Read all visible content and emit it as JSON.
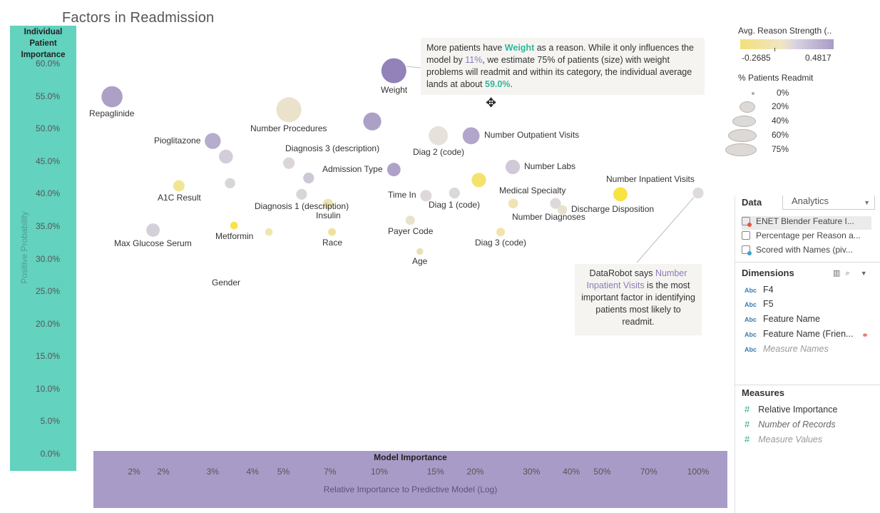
{
  "chart_data": {
    "type": "scatter",
    "title": "Factors in Readmission",
    "y_header": "Individual Patient Importance",
    "ylabel": "Positive Probability",
    "x_header": "Model Importance",
    "xlabel": "Relative Importance to Predictive Model (Log)",
    "x_scale": "log",
    "xlim": [
      0.013,
      1.2
    ],
    "ylim": [
      0,
      0.6
    ],
    "y_ticks": [
      "60.0%",
      "55.0%",
      "50.0%",
      "45.0%",
      "40.0%",
      "35.0%",
      "30.0%",
      "25.0%",
      "20.0%",
      "15.0%",
      "10.0%",
      "5.0%",
      "0.0%"
    ],
    "x_ticks": [
      {
        "v": 0.017,
        "label": "2%"
      },
      {
        "v": 0.021,
        "label": "2%"
      },
      {
        "v": 0.03,
        "label": "3%"
      },
      {
        "v": 0.04,
        "label": "4%"
      },
      {
        "v": 0.05,
        "label": "5%"
      },
      {
        "v": 0.07,
        "label": "7%"
      },
      {
        "v": 0.1,
        "label": "10%"
      },
      {
        "v": 0.15,
        "label": "15%"
      },
      {
        "v": 0.2,
        "label": "20%"
      },
      {
        "v": 0.3,
        "label": "30%"
      },
      {
        "v": 0.4,
        "label": "40%"
      },
      {
        "v": 0.5,
        "label": "50%"
      },
      {
        "v": 0.7,
        "label": "70%"
      },
      {
        "v": 1.0,
        "label": "100%"
      }
    ],
    "color_legend": {
      "title": "Avg. Reason Strength (..",
      "min": "-0.2685",
      "max": "0.4817"
    },
    "size_legend": {
      "title": "% Patients Readmit",
      "levels": [
        "0%",
        "20%",
        "40%",
        "60%",
        "75%"
      ]
    },
    "points": [
      {
        "x": 0.0145,
        "y": 0.55,
        "size": 0.6,
        "color": "#a598c2",
        "label": "Repaglinide",
        "lp": "below"
      },
      {
        "x": 0.03,
        "y": 0.482,
        "size": 0.4,
        "color": "#b0a5c9",
        "label": "Pioglitazone",
        "lp": "left"
      },
      {
        "x": 0.033,
        "y": 0.458,
        "size": 0.32,
        "color": "#cfc9d7",
        "label": "",
        "lp": "none"
      },
      {
        "x": 0.0235,
        "y": 0.413,
        "size": 0.22,
        "color": "#f0e38c",
        "label": "A1C Result",
        "lp": "below"
      },
      {
        "x": 0.034,
        "y": 0.417,
        "size": 0.18,
        "color": "#d6d2d3",
        "label": "",
        "lp": "none"
      },
      {
        "x": 0.0195,
        "y": 0.345,
        "size": 0.3,
        "color": "#d1ccd4",
        "label": "Max Glucose Serum",
        "lp": "below"
      },
      {
        "x": 0.035,
        "y": 0.352,
        "size": 0.08,
        "color": "#f7e13a",
        "label": "Metformin",
        "lp": "below"
      },
      {
        "x": 0.045,
        "y": 0.342,
        "size": 0.07,
        "color": "#efe5a8",
        "label": "",
        "lp": "none"
      },
      {
        "x": 0.052,
        "y": 0.53,
        "size": 0.75,
        "color": "#e8e0c6",
        "label": "Number Procedures",
        "lp": "below"
      },
      {
        "x": 0.052,
        "y": 0.448,
        "size": 0.23,
        "color": "#d9d2d6",
        "label": "",
        "lp": "none"
      },
      {
        "x": 0.06,
        "y": 0.425,
        "size": 0.2,
        "color": "#c9c2d3",
        "label": "",
        "lp": "none"
      },
      {
        "x": 0.057,
        "y": 0.4,
        "size": 0.2,
        "color": "#d7d3d1",
        "label": "Diagnosis 1 (description)",
        "lp": "below"
      },
      {
        "x": 0.069,
        "y": 0.385,
        "size": 0.19,
        "color": "#eee2a9",
        "label": "Insulin",
        "lp": "below"
      },
      {
        "x": 0.071,
        "y": 0.342,
        "size": 0.08,
        "color": "#efde96",
        "label": "Race",
        "lp": "below"
      },
      {
        "x": 0.095,
        "y": 0.512,
        "size": 0.48,
        "color": "#a598c2",
        "label": "",
        "lp": "none"
      },
      {
        "x": 0.111,
        "y": 0.59,
        "size": 0.75,
        "color": "#8a76b4",
        "label": "Weight",
        "lp": "below"
      },
      {
        "x": 0.111,
        "y": 0.438,
        "size": 0.3,
        "color": "#a79ac3",
        "label": "Admission Type",
        "lp": "left"
      },
      {
        "x": 0.125,
        "y": 0.36,
        "size": 0.14,
        "color": "#e5dfc6",
        "label": "Payer Code",
        "lp": "below"
      },
      {
        "x": 0.134,
        "y": 0.312,
        "size": 0.04,
        "color": "#e7dcb0",
        "label": "Age",
        "lp": "below"
      },
      {
        "x": 0.14,
        "y": 0.398,
        "size": 0.22,
        "color": "#dbd6d5",
        "label": "Time In",
        "lp": "left"
      },
      {
        "x": 0.153,
        "y": 0.49,
        "size": 0.52,
        "color": "#e4e0d8",
        "label": "Diag 2 (code)",
        "lp": "below"
      },
      {
        "x": 0.172,
        "y": 0.402,
        "size": 0.2,
        "color": "#d9d5d5",
        "label": "Diag 1 (code)",
        "lp": "below"
      },
      {
        "x": 0.194,
        "y": 0.49,
        "size": 0.44,
        "color": "#ab9ec6",
        "label": "Number Outpatient Visits",
        "lp": "right"
      },
      {
        "x": 0.205,
        "y": 0.422,
        "size": 0.34,
        "color": "#f3df60",
        "label": "",
        "lp": "none"
      },
      {
        "x": 0.24,
        "y": 0.342,
        "size": 0.11,
        "color": "#f1e1a0",
        "label": "Diag 3 (code)",
        "lp": "below"
      },
      {
        "x": 0.262,
        "y": 0.442,
        "size": 0.34,
        "color": "#cbc4d5",
        "label": "Number Labs",
        "lp": "right"
      },
      {
        "x": 0.263,
        "y": 0.386,
        "size": 0.16,
        "color": "#eee2ad",
        "label": "Medical Specialty",
        "lp": "above-right"
      },
      {
        "x": 0.357,
        "y": 0.386,
        "size": 0.2,
        "color": "#dad6d6",
        "label": "Number Diagnoses",
        "lp": "below-left"
      },
      {
        "x": 0.375,
        "y": 0.376,
        "size": 0.15,
        "color": "#e5dfca",
        "label": "Discharge Disposition",
        "lp": "right"
      },
      {
        "x": 0.57,
        "y": 0.4,
        "size": 0.33,
        "color": "#f8e132",
        "label": "Number Inpatient Visits",
        "lp": "above-right"
      },
      {
        "x": 1.0,
        "y": 0.402,
        "size": 0.2,
        "color": "#dcd8d7",
        "label": "",
        "lp": "none"
      }
    ],
    "gender_label": "Gender",
    "diag3desc_label": "Diagnosis 3 (description)"
  },
  "annotations": {
    "weight": {
      "p1": "More patients have ",
      "h1": "Weight",
      "p2": " as a reason.  While it only influences the model by ",
      "h2": "11%",
      "p3": ", we estimate 75% of patients (size) with weight problems will readmit and within its category, the individual average lands at about ",
      "h3": "59.0%",
      "p4": "."
    },
    "inpatient": {
      "p1": "DataRobot says ",
      "h1": "Number Inpatient Visits",
      "p2": " is the most important factor in identifying patients most likely to readmit."
    }
  },
  "side_panel": {
    "tab_data": "Data",
    "tab_analytics": "Analytics",
    "datasources": [
      "ENET Blender Feature I...",
      "Percentage per Reason a...",
      "Scored with Names (piv..."
    ],
    "dimensions_title": "Dimensions",
    "dimensions": [
      "F4",
      "F5",
      "Feature Name",
      "Feature Name (Frien...",
      "Measure Names"
    ],
    "measures_title": "Measures",
    "measures": [
      "Relative Importance",
      "Number of Records",
      "Measure Values"
    ],
    "abc": "Abc",
    "hash": "#"
  },
  "icons": {
    "move": "move-cursor-icon",
    "link": "link-icon",
    "dropdown": "chevron-down-icon"
  }
}
